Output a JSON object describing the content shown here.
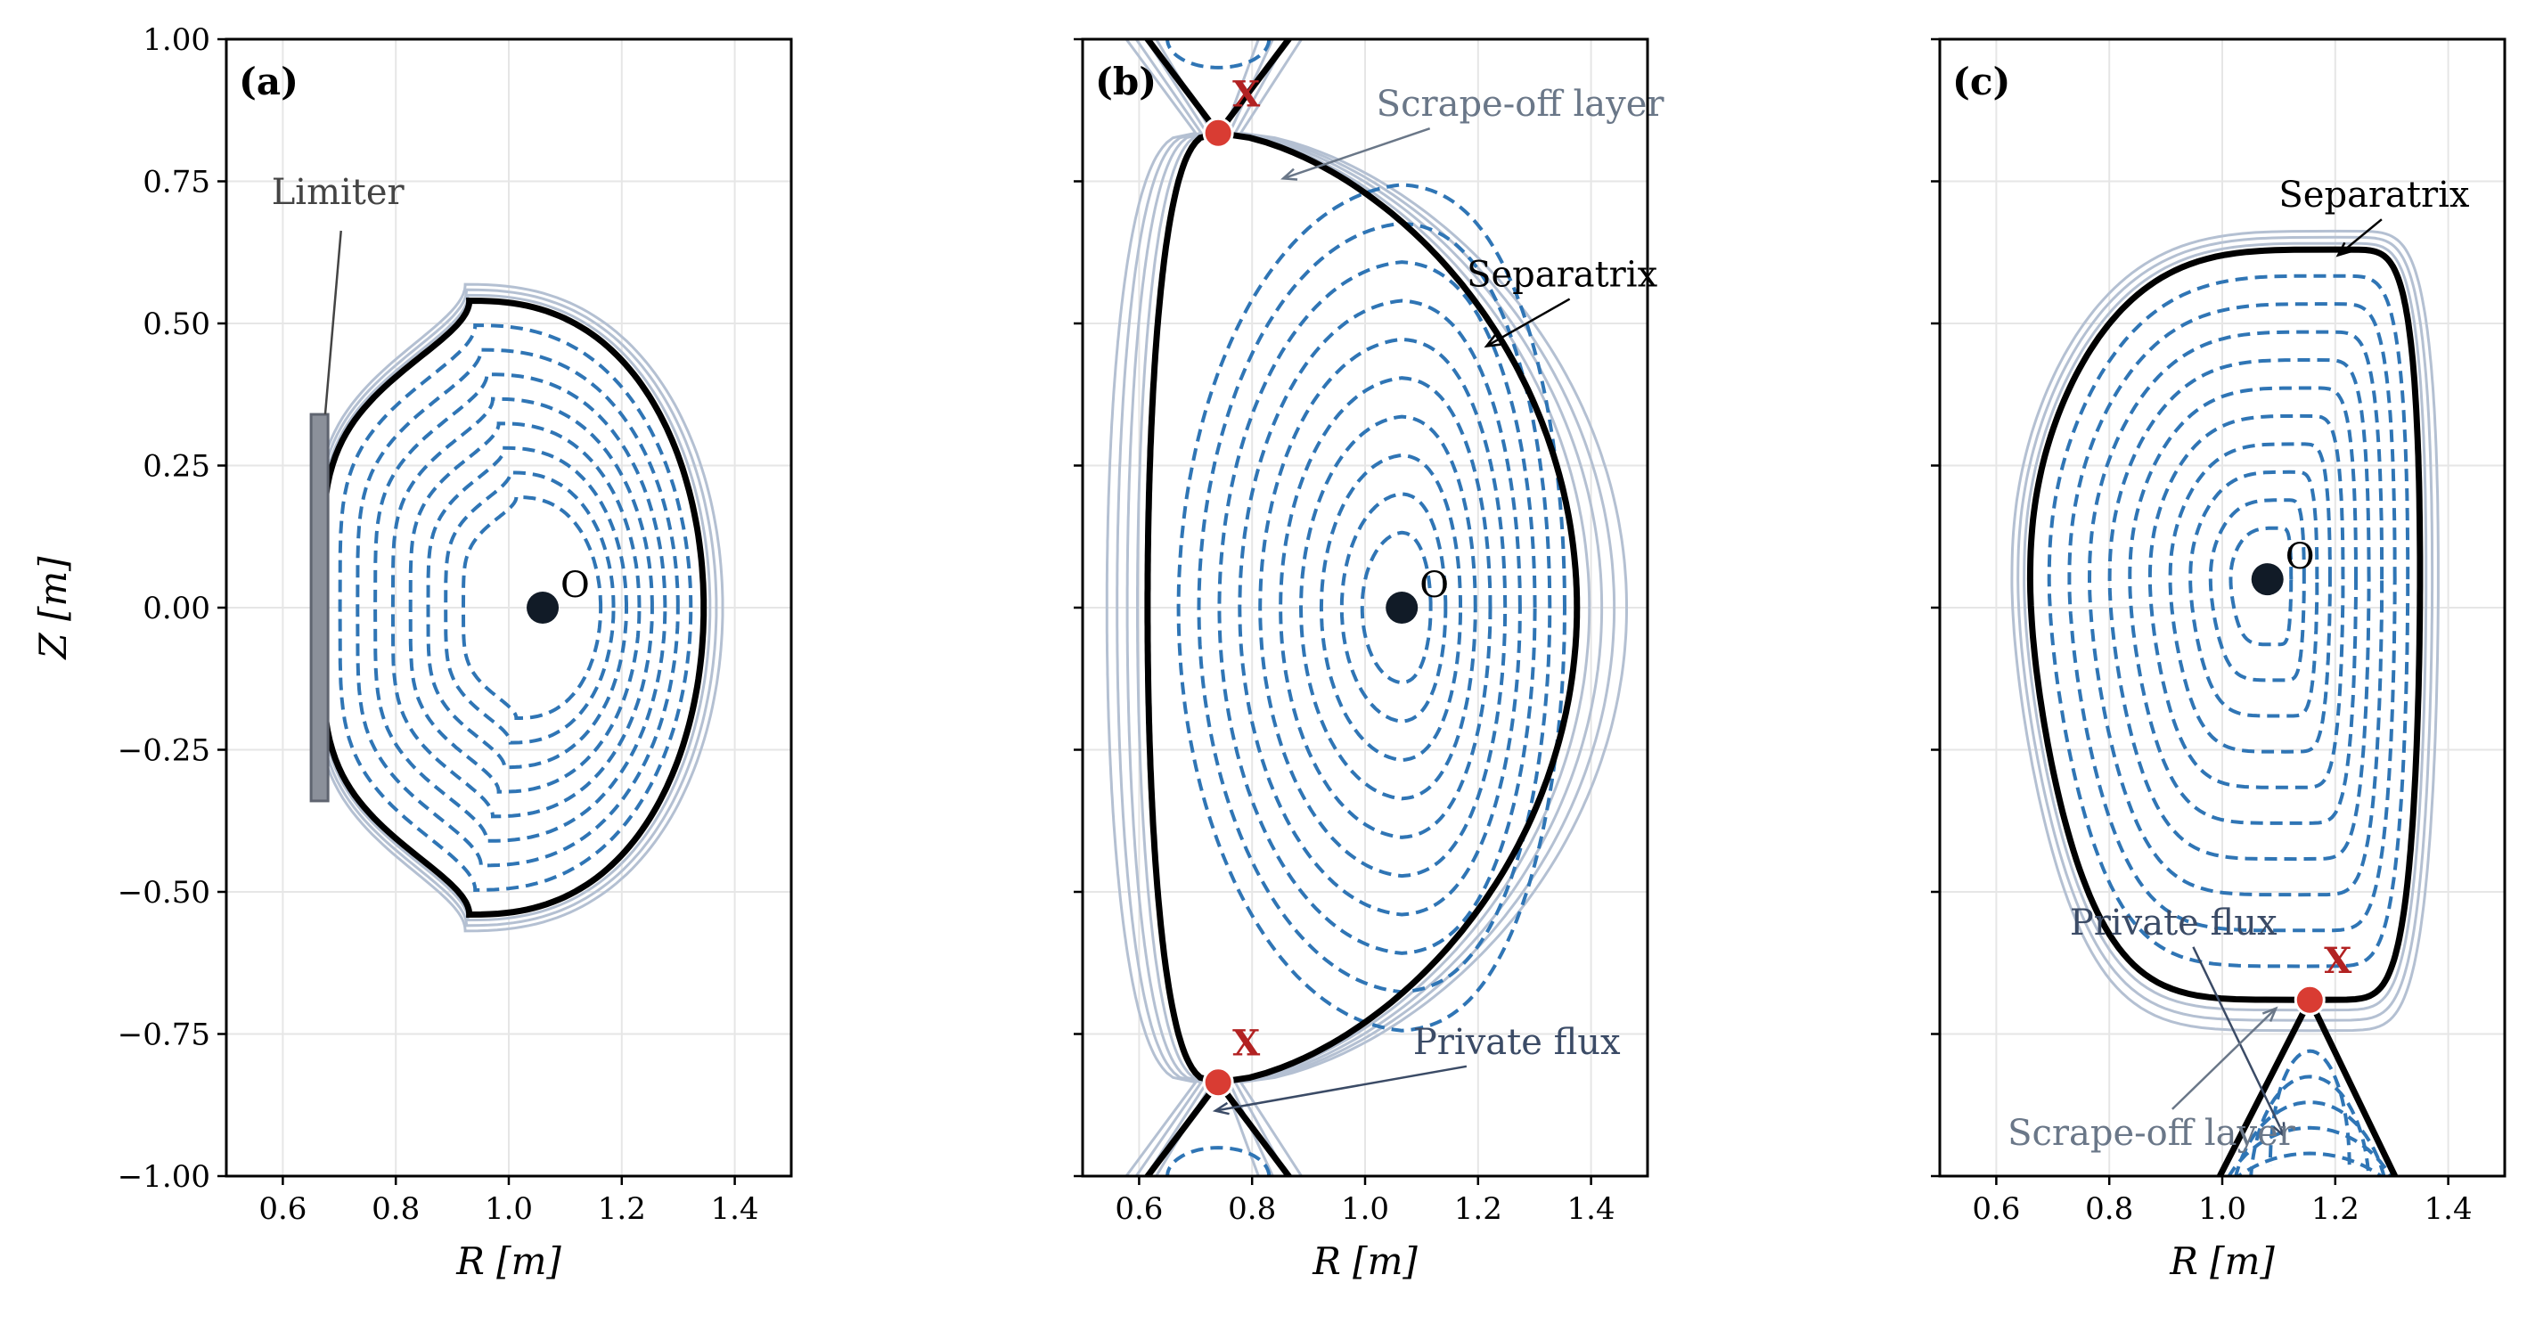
{
  "colors": {
    "inner_surface": "#2f75b5",
    "separatrix": "#000000",
    "sol": "#b4c0d2",
    "xpoint": "#d93c33",
    "xlabel": "#b22222",
    "opoint": "#111b27",
    "limiter_fill": "#8b909a",
    "limiter_edge": "#5f6470",
    "annot_sol": "#6a7788",
    "annot_private": "#3b4b66",
    "annot_limiter": "#444444",
    "annot_black": "#000000"
  },
  "chart_data": [
    {
      "type": "line",
      "panel": "(a)",
      "xlabel": "R [m]",
      "ylabel": "Z [m]",
      "xlim": [
        0.5,
        1.5
      ],
      "ylim": [
        -1.0,
        1.0
      ],
      "xticks": [
        "0.6",
        "0.8",
        "1.0",
        "1.2",
        "1.4"
      ],
      "yticks": [
        "1.00",
        "0.75",
        "0.50",
        "0.25",
        "0.00",
        "−0.25",
        "−0.50",
        "−0.75",
        "−1.00"
      ],
      "grid": true,
      "configuration": "limited",
      "o_point": {
        "R": 1.06,
        "Z": 0.0,
        "label": "O"
      },
      "separatrix": {
        "R_in": 0.67,
        "R_out": 1.345,
        "R_top": 0.93,
        "Z_top": 0.54,
        "Z_bottom": -0.54
      },
      "inner_flux_surfaces": 8,
      "sol_lines": 3,
      "limiter": {
        "R_min": 0.65,
        "R_max": 0.68,
        "Z_min": -0.34,
        "Z_max": 0.34,
        "label": "Limiter",
        "label_R": 0.58,
        "label_Z": 0.71,
        "arrow_to_R": 0.675,
        "arrow_to_Z": 0.34
      },
      "annotations": []
    },
    {
      "type": "line",
      "panel": "(b)",
      "xlabel": "R [m]",
      "ylabel": "",
      "xlim": [
        0.5,
        1.5
      ],
      "ylim": [
        -1.0,
        1.0
      ],
      "xticks": [
        "0.6",
        "0.8",
        "1.0",
        "1.2",
        "1.4"
      ],
      "yticks": [],
      "grid": true,
      "configuration": "double-null",
      "o_point": {
        "R": 1.065,
        "Z": 0.0,
        "label": "O"
      },
      "x_points": [
        {
          "R": 0.74,
          "Z": 0.835,
          "label": "X"
        },
        {
          "R": 0.74,
          "Z": -0.835,
          "label": "X"
        }
      ],
      "separatrix": {
        "R_in": 0.615,
        "R_out": 1.375,
        "R_peak": 1.0,
        "Z_x": 0.835
      },
      "inner_flux_surfaces": 10,
      "sol_lines": 4,
      "annotations": [
        {
          "text": "Scrape-off layer",
          "R": 1.02,
          "Z": 0.865,
          "arrow_to_R": 0.855,
          "arrow_to_Z": 0.755,
          "color_key": "annot_sol"
        },
        {
          "text": "Separatrix",
          "R": 1.18,
          "Z": 0.565,
          "arrow_to_R": 1.215,
          "arrow_to_Z": 0.46,
          "color_key": "annot_black"
        },
        {
          "text": "Private flux",
          "R": 1.085,
          "Z": -0.785,
          "arrow_to_R": 0.735,
          "arrow_to_Z": -0.885,
          "color_key": "annot_private"
        }
      ]
    },
    {
      "type": "line",
      "panel": "(c)",
      "xlabel": "R [m]",
      "ylabel": "",
      "xlim": [
        0.5,
        1.5
      ],
      "ylim": [
        -1.0,
        1.0
      ],
      "xticks": [
        "0.6",
        "0.8",
        "1.0",
        "1.2",
        "1.4"
      ],
      "yticks": [],
      "grid": true,
      "configuration": "single-null",
      "o_point": {
        "R": 1.08,
        "Z": 0.05,
        "label": "O"
      },
      "x_points": [
        {
          "R": 1.155,
          "Z": -0.69,
          "label": "X"
        }
      ],
      "separatrix": {
        "R_in": 0.66,
        "R_out": 1.35,
        "R_top": 1.23,
        "Z_top": 0.63
      },
      "inner_flux_surfaces": 10,
      "sol_lines": 3,
      "annotations": [
        {
          "text": "Separatrix",
          "R": 1.1,
          "Z": 0.705,
          "arrow_to_R": 1.205,
          "arrow_to_Z": 0.62,
          "color_key": "annot_black"
        },
        {
          "text": "Private flux",
          "R": 0.73,
          "Z": -0.575,
          "arrow_to_R": 1.11,
          "arrow_to_Z": -0.93,
          "color_key": "annot_private"
        },
        {
          "text": "Scrape-off layer",
          "R": 0.62,
          "Z": -0.945,
          "arrow_to_R": 1.095,
          "arrow_to_Z": -0.705,
          "color_key": "annot_sol"
        }
      ]
    }
  ]
}
